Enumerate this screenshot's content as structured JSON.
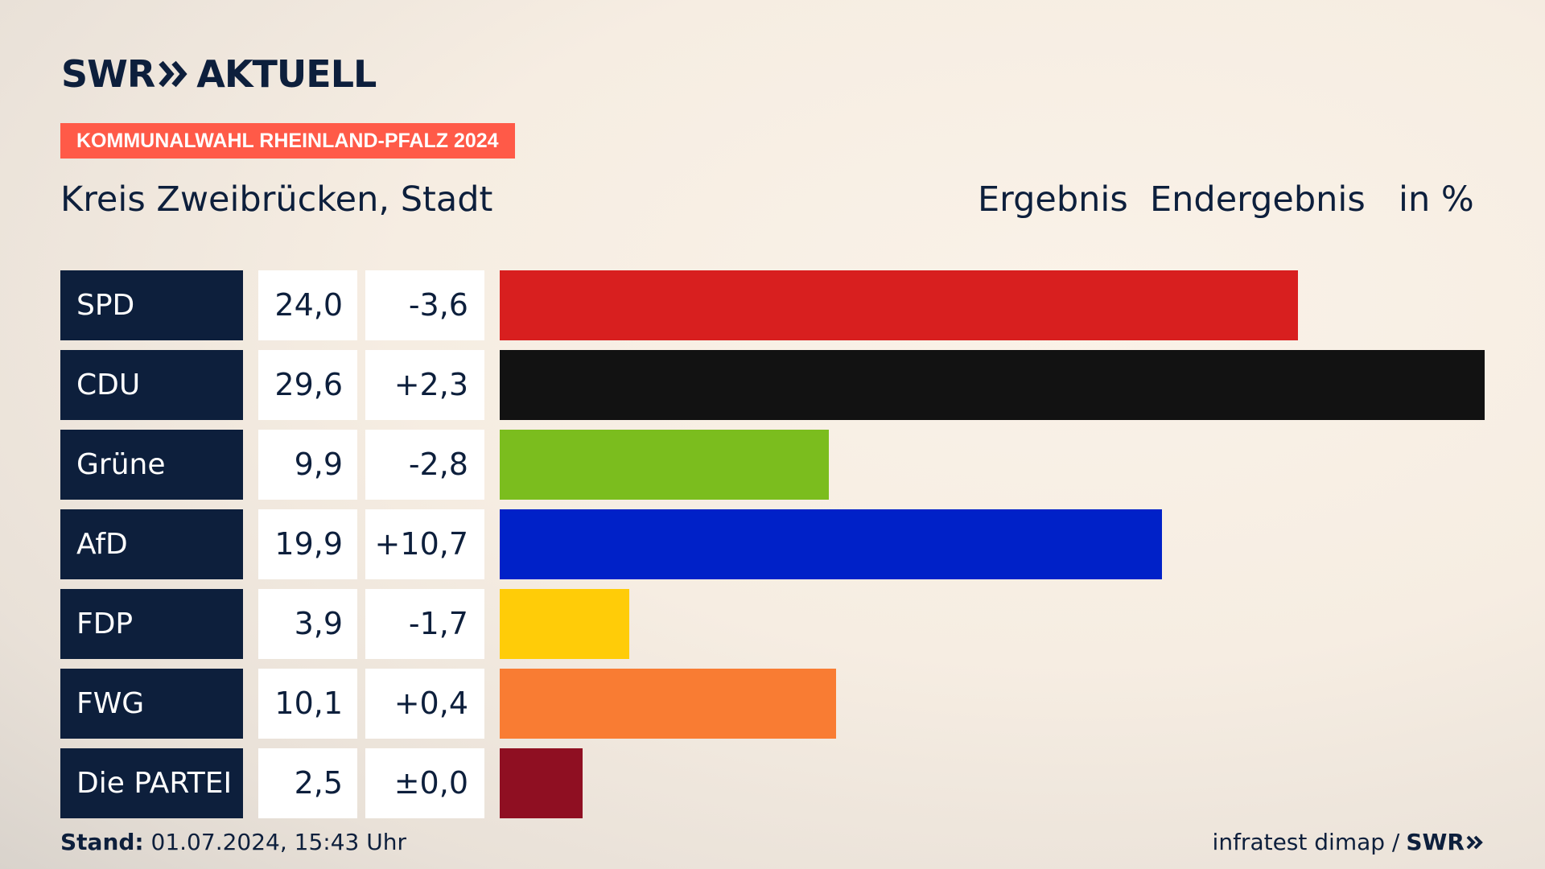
{
  "brand": {
    "swr": "SWR",
    "aktuell": "AKTUELL",
    "logo_icon": "double-chevron-right-icon"
  },
  "badge": "KOMMUNALWAHL RHEINLAND-PFALZ 2024",
  "region": "Kreis Zweibrücken, Stadt",
  "header": {
    "ergebnis": "Ergebnis",
    "endergebnis": "Endergebnis",
    "unit": "in %"
  },
  "chart_data": {
    "type": "bar",
    "orientation": "horizontal",
    "categories": [
      "SPD",
      "CDU",
      "Grüne",
      "AfD",
      "FDP",
      "FWG",
      "Die PARTEI"
    ],
    "values": [
      24.0,
      29.6,
      9.9,
      19.9,
      3.9,
      10.1,
      2.5
    ],
    "value_labels": [
      "24,0",
      "29,6",
      "9,9",
      "19,9",
      "3,9",
      "10,1",
      "2,5"
    ],
    "diff_labels": [
      "-3,6",
      "+2,3",
      "-2,8",
      "+10,7",
      "-1,7",
      "+0,4",
      "±0,0"
    ],
    "colors": [
      "#d81f1f",
      "#121212",
      "#7bbd1e",
      "#0021c8",
      "#ffcc08",
      "#f97c33",
      "#8f0f22"
    ],
    "xlim": [
      0,
      29.6
    ]
  },
  "footer": {
    "stand_label": "Stand:",
    "stand_value": "01.07.2024, 15:43 Uhr",
    "source": "infratest dimap /",
    "source_brand": "SWR"
  }
}
